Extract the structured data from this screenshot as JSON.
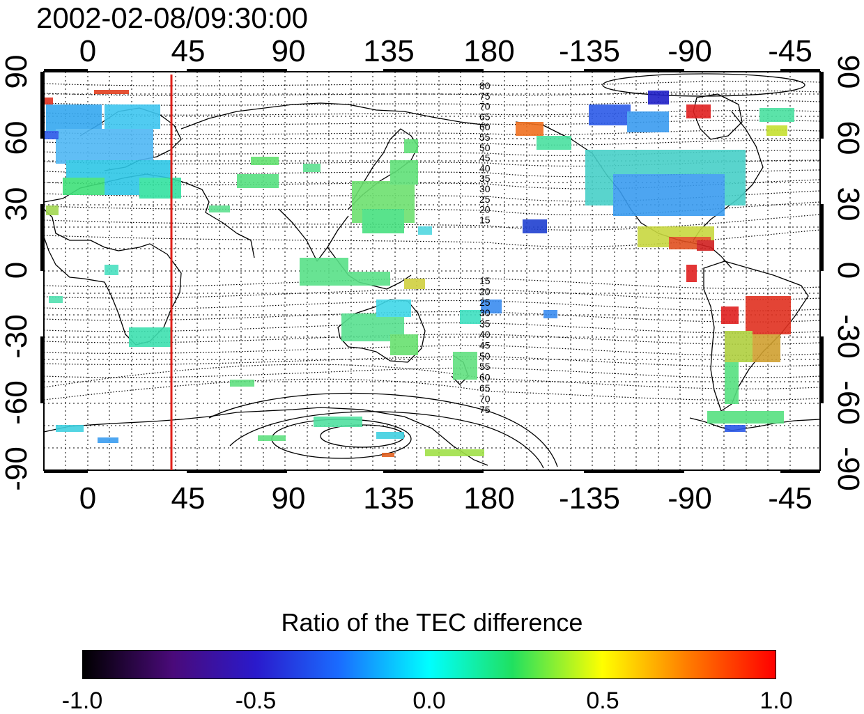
{
  "title": "2002-02-08/09:30:00",
  "map": {
    "top_lon_ticks": [
      "0",
      "45",
      "90",
      "135",
      "180",
      "-135",
      "-90",
      "-45"
    ],
    "bottom_lon_ticks": [
      "0",
      "45",
      "90",
      "135",
      "180",
      "-135",
      "-90",
      "-45"
    ],
    "left_lat_ticks": [
      "90",
      "60",
      "30",
      "0",
      "-30",
      "-60",
      "-90"
    ],
    "right_lat_ticks": [
      "90",
      "60",
      "30",
      "0",
      "-30",
      "-60",
      "-90"
    ],
    "north_contour_labels": [
      "80",
      "75",
      "70",
      "65",
      "60",
      "55",
      "50",
      "45",
      "40",
      "35",
      "30",
      "25",
      "20",
      "15"
    ],
    "south_contour_labels": [
      "15",
      "20",
      "25",
      "30",
      "35",
      "40",
      "45",
      "50",
      "55",
      "60",
      "65",
      "70",
      "75"
    ],
    "marker_line": {
      "longitude": 40,
      "color": "#e0201a"
    }
  },
  "colorbar": {
    "title": "Ratio of the TEC difference",
    "ticks": [
      "-1.0",
      "-0.5",
      "0.0",
      "0.5",
      "1.0"
    ],
    "range": [
      -1.0,
      1.0
    ]
  }
}
